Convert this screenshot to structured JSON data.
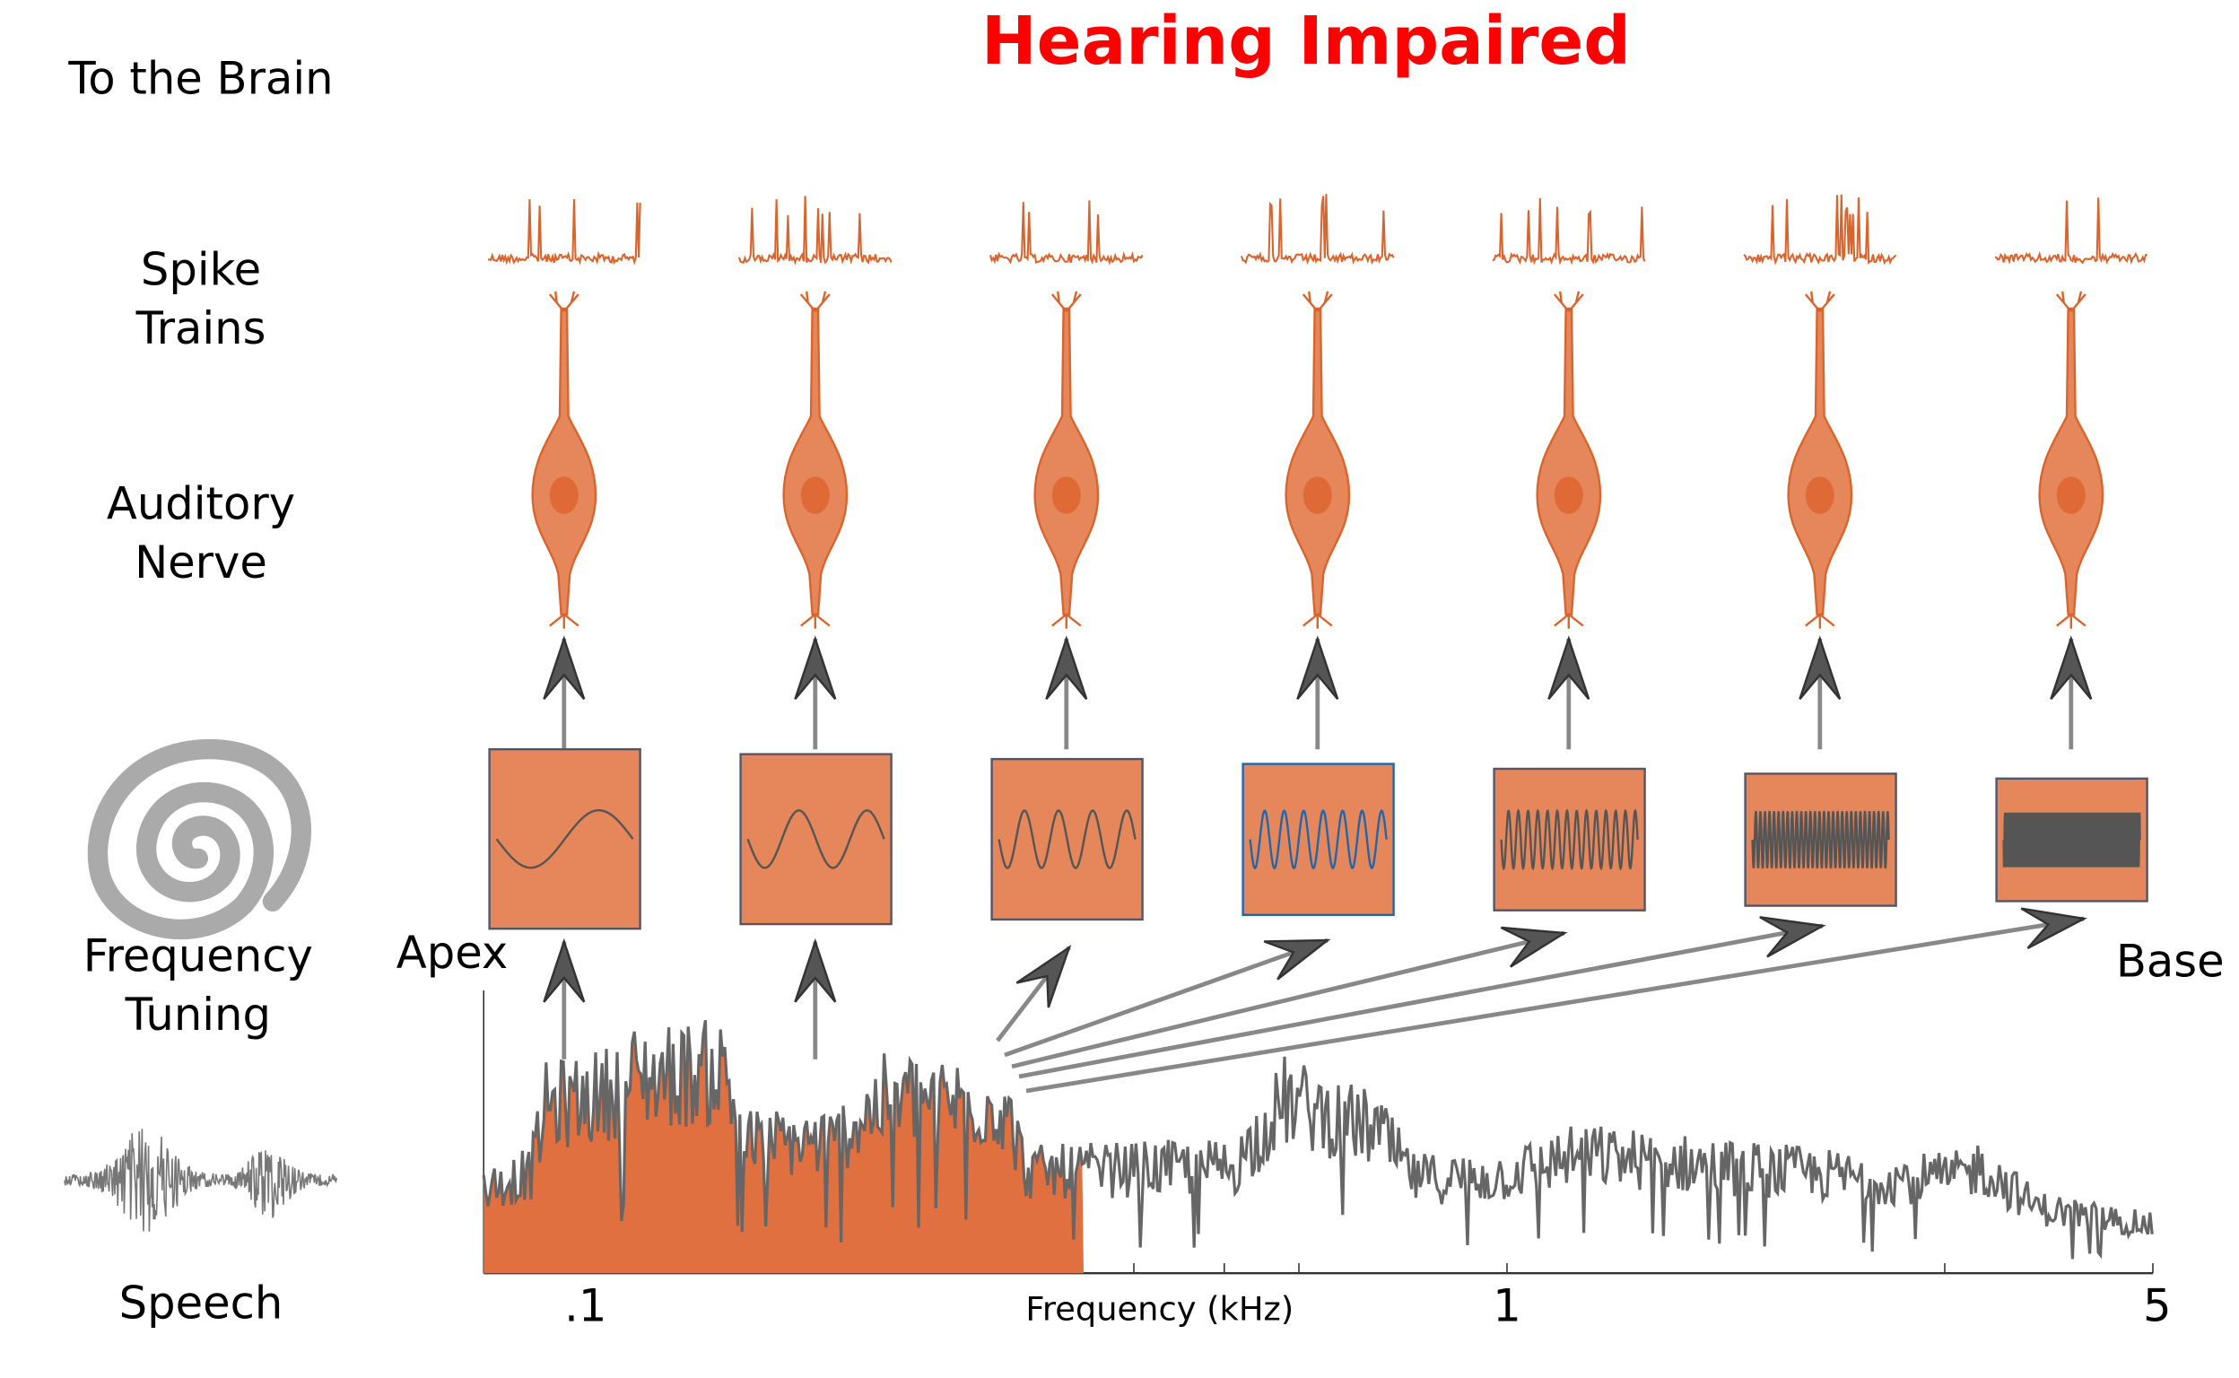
{
  "header": {
    "title": "Hearing Impaired"
  },
  "row_labels": {
    "brain": "To the Brain",
    "spike_trains": [
      "Spike",
      "Trains"
    ],
    "auditory_nerve": [
      "Auditory",
      "Nerve"
    ],
    "frequency_tuning": [
      "Frequency",
      "Tuning"
    ],
    "speech": "Speech"
  },
  "cochlea": {
    "apex": "Apex",
    "base": "Base"
  },
  "axis": {
    "label": "Frequency (kHz)",
    "ticks": [
      ".1",
      "1",
      "5"
    ]
  }
}
